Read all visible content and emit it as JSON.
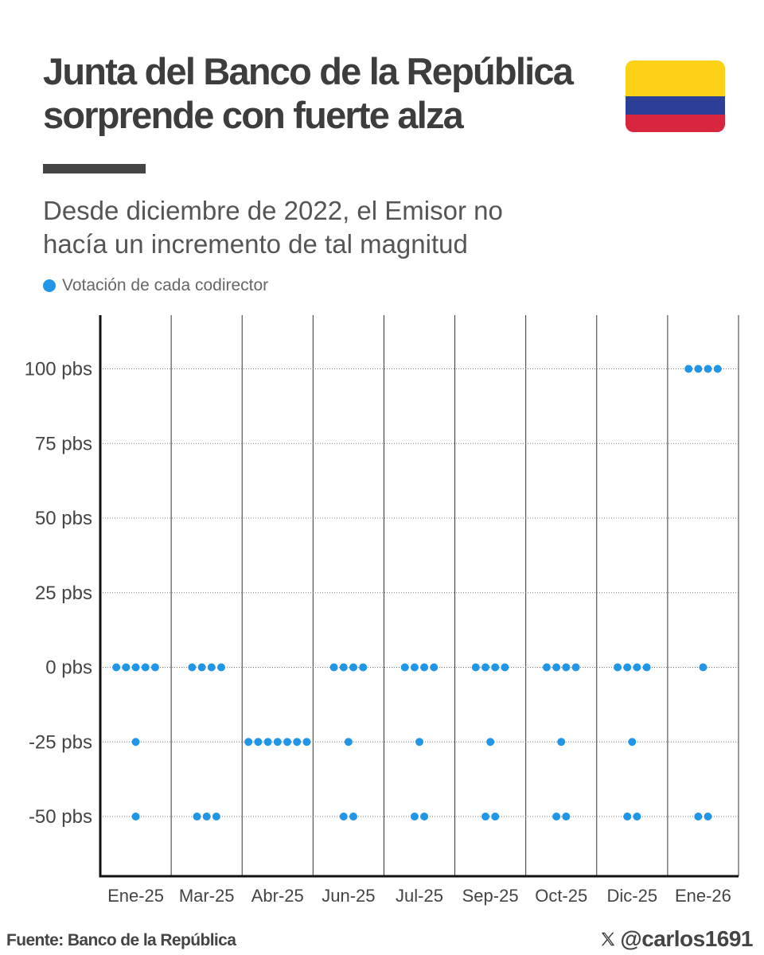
{
  "header": {
    "title_line1": "Junta del Banco de la República",
    "title_line2": "sorprende con fuerte alza",
    "subtitle_line1": "Desde diciembre de 2022, el Emisor no",
    "subtitle_line2": "hacía un incremento de tal magnitud"
  },
  "flag": {
    "colors": [
      "#fcd116",
      "#2b3f96",
      "#d7263d"
    ]
  },
  "legend": {
    "label": "Votación de cada codirector",
    "color": "#2196e6"
  },
  "chart_data": {
    "type": "scatter",
    "title": "",
    "xlabel": "",
    "ylabel": "",
    "y_tick_values": [
      -50,
      -25,
      0,
      25,
      50,
      75,
      100
    ],
    "y_tick_labels": [
      "-50 pbs",
      "-25 pbs",
      "0 pbs",
      "25 pbs",
      "50 pbs",
      "75 pbs",
      "100 pbs"
    ],
    "ylim": [
      -70,
      118
    ],
    "grid": true,
    "categories": [
      "Ene-25",
      "Mar-25",
      "Abr-25",
      "Jun-25",
      "Jul-25",
      "Sep-25",
      "Oct-25",
      "Dic-25",
      "Ene-26"
    ],
    "series": [
      {
        "name": "Votación de cada codirector",
        "color": "#2196e6",
        "votes": [
          [
            {
              "value": 0,
              "count": 5
            },
            {
              "value": -25,
              "count": 1
            },
            {
              "value": -50,
              "count": 1
            }
          ],
          [
            {
              "value": 0,
              "count": 4
            },
            {
              "value": -50,
              "count": 3
            }
          ],
          [
            {
              "value": -25,
              "count": 7
            }
          ],
          [
            {
              "value": 0,
              "count": 4
            },
            {
              "value": -25,
              "count": 1
            },
            {
              "value": -50,
              "count": 2
            }
          ],
          [
            {
              "value": 0,
              "count": 4
            },
            {
              "value": -25,
              "count": 1
            },
            {
              "value": -50,
              "count": 2
            }
          ],
          [
            {
              "value": 0,
              "count": 4
            },
            {
              "value": -25,
              "count": 1
            },
            {
              "value": -50,
              "count": 2
            }
          ],
          [
            {
              "value": 0,
              "count": 4
            },
            {
              "value": -25,
              "count": 1
            },
            {
              "value": -50,
              "count": 2
            }
          ],
          [
            {
              "value": 0,
              "count": 4
            },
            {
              "value": -25,
              "count": 1
            },
            {
              "value": -50,
              "count": 2
            }
          ],
          [
            {
              "value": 100,
              "count": 4
            },
            {
              "value": 0,
              "count": 1
            },
            {
              "value": -50,
              "count": 2
            }
          ]
        ]
      }
    ]
  },
  "footer": {
    "source": "Fuente: Banco de la República",
    "handle": "@carlos1691"
  }
}
